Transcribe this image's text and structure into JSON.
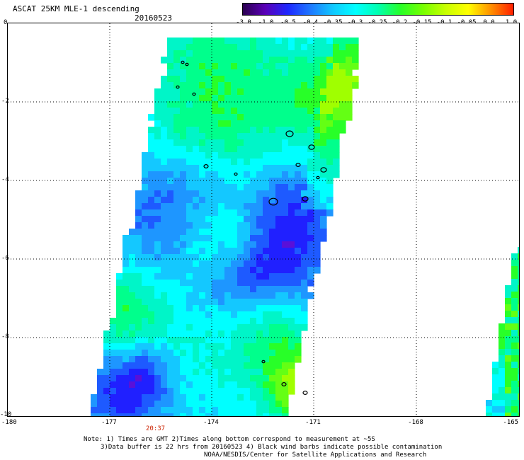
{
  "header": {
    "title": "ASCAT 25KM MLE-1 descending",
    "date": "20160523"
  },
  "colorbar": {
    "labels": [
      "-3.0",
      "-1.0",
      "-0.5",
      "-0.4",
      "-0.35",
      "-0.3",
      "-0.25",
      "-0.2",
      "-0.15",
      "-0.1",
      "-0.05",
      "0.0",
      "1.0"
    ],
    "colors": [
      "#2a0050",
      "#5a00b8",
      "#1e28ff",
      "#1e78ff",
      "#10c8ff",
      "#00ffff",
      "#00ffb0",
      "#28ff28",
      "#78ff00",
      "#c8ff00",
      "#ffff00",
      "#ff9000",
      "#ff1e00"
    ]
  },
  "axes": {
    "y_labels": [
      "0",
      "-2",
      "-4",
      "-6",
      "-8",
      "-10"
    ],
    "x_labels": [
      "-180",
      "-177",
      "-174",
      "-171",
      "-168",
      "-165"
    ]
  },
  "time_label": "20:37",
  "notes": [
    "Note: 1) Times are GMT 2)Times along bottom correspond to measurement at ~5S",
    "3)Data buffer is 22 hrs from 20160523 4) Black wind barbs indicate possible contamination",
    "NOAA/NESDIS/Center for Satellite Applications and Research"
  ]
}
